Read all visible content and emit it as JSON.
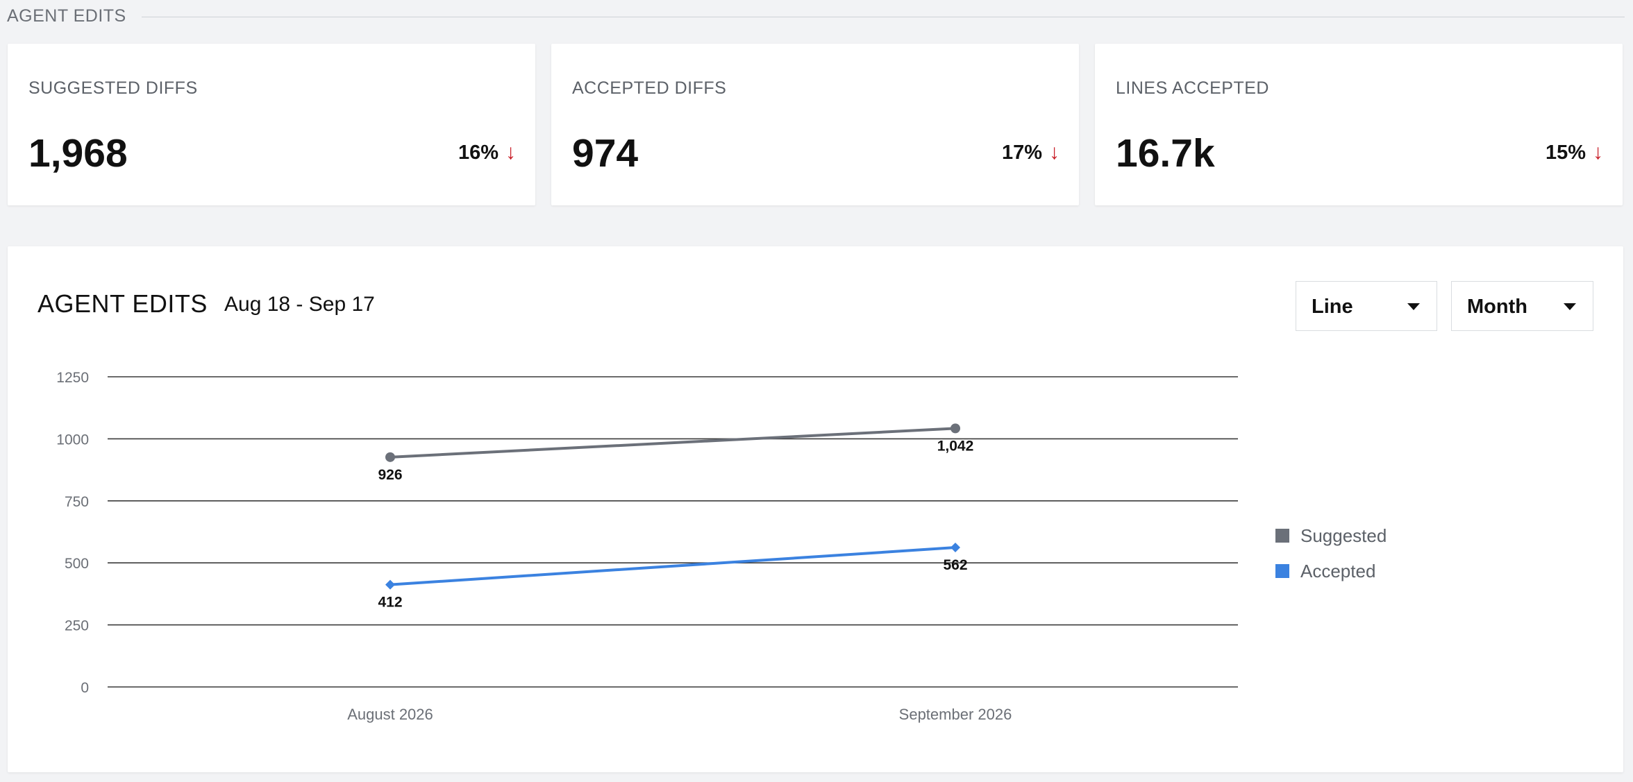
{
  "section": {
    "title": "AGENT EDITS"
  },
  "stats": [
    {
      "label": "SUGGESTED DIFFS",
      "value": "1,968",
      "change": "16%",
      "direction": "down"
    },
    {
      "label": "ACCEPTED DIFFS",
      "value": "974",
      "change": "17%",
      "direction": "down"
    },
    {
      "label": "LINES ACCEPTED",
      "value": "16.7k",
      "change": "15%",
      "direction": "down"
    }
  ],
  "icons": {
    "trend": "arrow-down-icon",
    "dropdown": "caret-down-icon"
  },
  "colors": {
    "page_background": "#f2f3f5",
    "trend_down": "#c81e28",
    "suggested": "#6b7079",
    "accepted": "#3b82e0"
  },
  "chart_panel": {
    "title": "AGENT EDITS",
    "date_range": "Aug 18 - Sep 17",
    "chart_type_select": {
      "selected": "Line"
    },
    "period_select": {
      "selected": "Month"
    }
  },
  "chart_data": {
    "type": "line",
    "categories": [
      "August 2026",
      "September 2026"
    ],
    "series": [
      {
        "name": "Suggested",
        "values": [
          926,
          1042
        ],
        "labels": [
          "926",
          "1,042"
        ],
        "color": "#6b7079",
        "marker": "circle"
      },
      {
        "name": "Accepted",
        "values": [
          412,
          562
        ],
        "labels": [
          "412",
          "562"
        ],
        "color": "#3b82e0",
        "marker": "diamond"
      }
    ],
    "ylim": [
      0,
      1250
    ],
    "yticks": [
      0,
      250,
      500,
      750,
      1000,
      1250
    ],
    "grid": true,
    "legend_position": "right"
  }
}
